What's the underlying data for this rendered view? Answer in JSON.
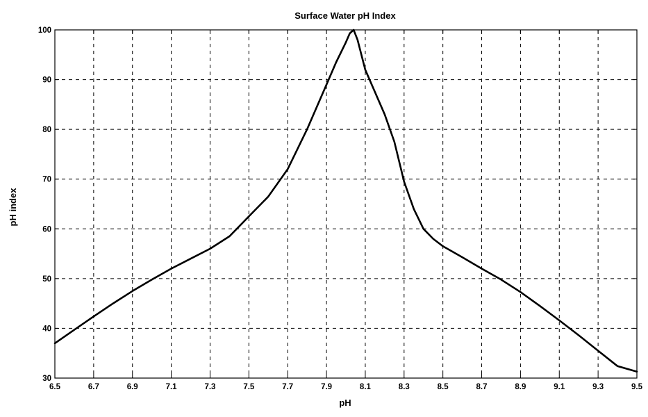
{
  "chart_data": {
    "type": "line",
    "title": "Surface Water pH Index",
    "xlabel": "pH",
    "ylabel": "pH index",
    "xlim": [
      6.5,
      9.5
    ],
    "ylim": [
      30,
      100
    ],
    "grid": true,
    "grid_style": "dashed",
    "line_color": "#000000",
    "x_ticks": [
      6.5,
      6.7,
      6.9,
      7.1,
      7.3,
      7.5,
      7.7,
      7.9,
      8.1,
      8.3,
      8.5,
      8.7,
      8.9,
      9.1,
      9.3,
      9.5
    ],
    "x_tick_labels": [
      "6.5",
      "6.7",
      "6.9",
      "7.1",
      "7.3",
      "7.5",
      "7.7",
      "7.9",
      "8.1",
      "8.3",
      "8.5",
      "8.7",
      "8.9",
      "9.1",
      "9.3",
      "9.5"
    ],
    "y_ticks": [
      30,
      40,
      50,
      60,
      70,
      80,
      90,
      100
    ],
    "y_tick_labels": [
      "30",
      "40",
      "50",
      "60",
      "70",
      "80",
      "90",
      "100"
    ],
    "series": [
      {
        "x": [
          6.5,
          6.6,
          6.7,
          6.8,
          6.9,
          7.0,
          7.1,
          7.2,
          7.3,
          7.4,
          7.45,
          7.5,
          7.6,
          7.7,
          7.8,
          7.9,
          7.95,
          8.0,
          8.02,
          8.04,
          8.06,
          8.1,
          8.2,
          8.25,
          8.3,
          8.35,
          8.4,
          8.45,
          8.5,
          8.6,
          8.7,
          8.8,
          8.9,
          9.0,
          9.1,
          9.2,
          9.3,
          9.4,
          9.5
        ],
        "y": [
          37.0,
          39.7,
          42.4,
          45.0,
          47.5,
          49.8,
          52.0,
          54.0,
          56.0,
          58.5,
          60.5,
          62.5,
          66.5,
          72.0,
          80.0,
          89.0,
          93.5,
          97.5,
          99.3,
          100.0,
          98.0,
          92.0,
          83.0,
          77.5,
          69.5,
          64.0,
          60.0,
          58.0,
          56.5,
          54.3,
          52.0,
          49.8,
          47.3,
          44.5,
          41.6,
          38.6,
          35.5,
          32.4,
          31.3
        ]
      }
    ]
  }
}
